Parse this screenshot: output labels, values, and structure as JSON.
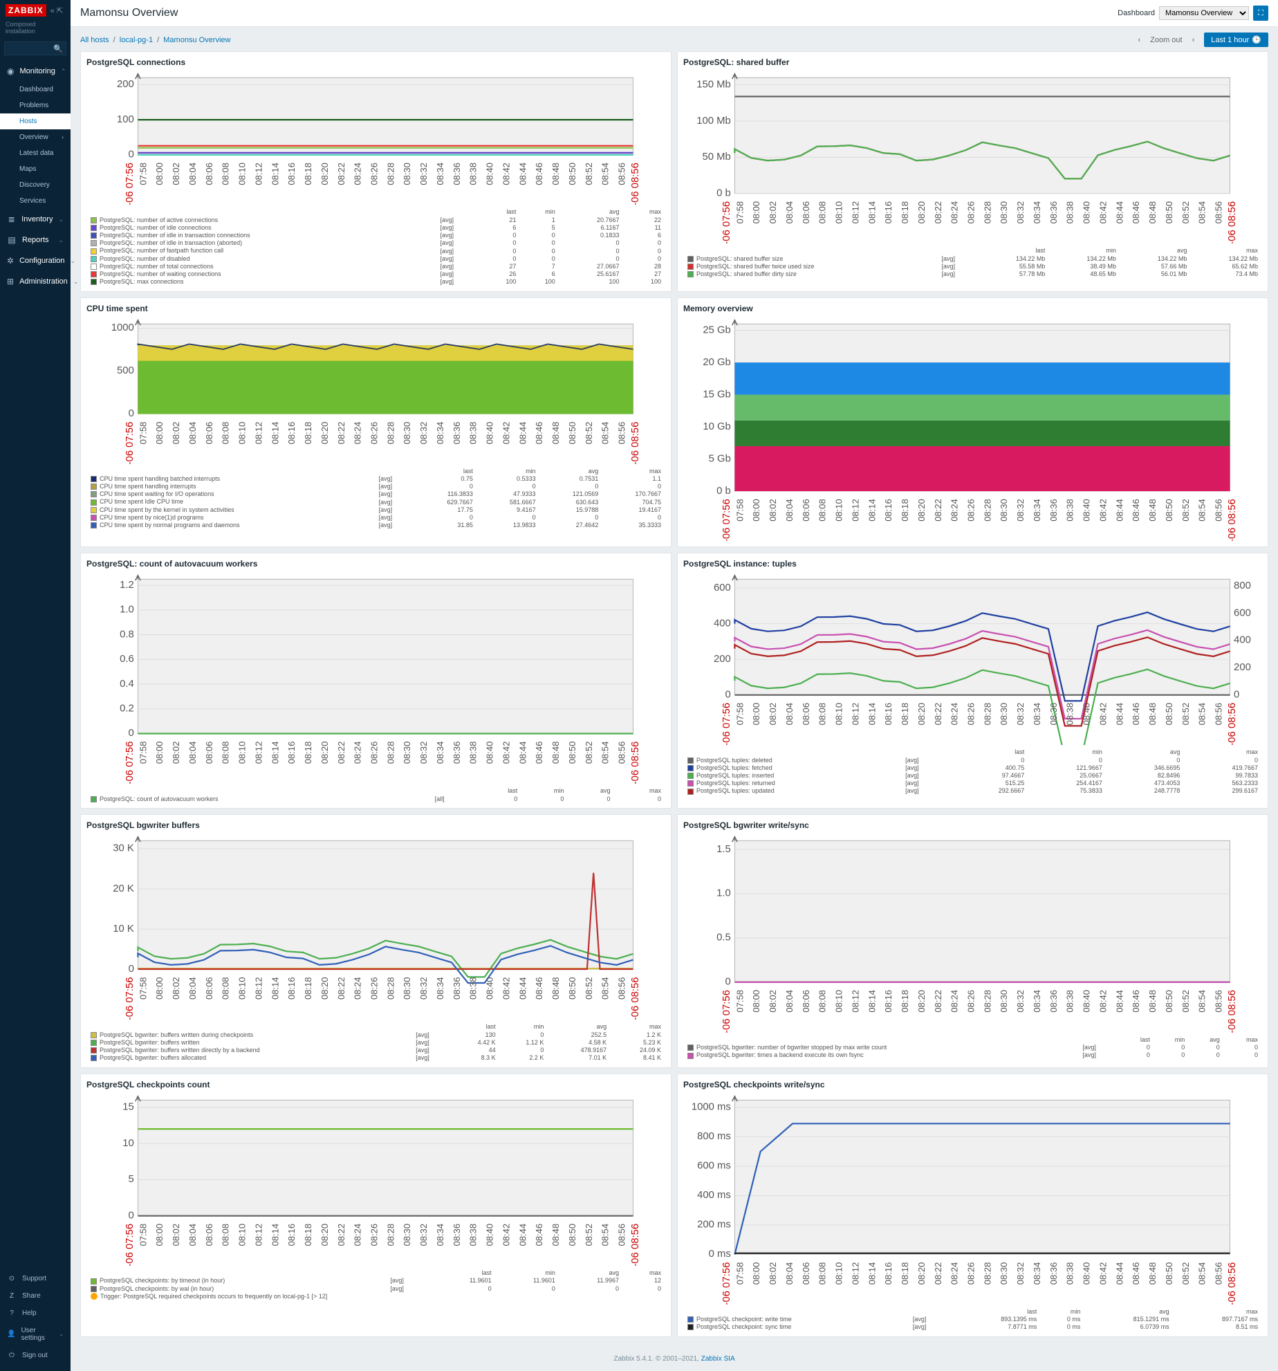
{
  "global": {
    "logo": "ZABBIX",
    "installation_label": "Composed installation",
    "page_title": "Mamonsu Overview",
    "dashboard_label": "Dashboard",
    "dashboard_selected": "Mamonsu Overview",
    "breadcrumb": {
      "all_hosts": "All hosts",
      "host": "local-pg-1",
      "current": "Mamonsu Overview"
    },
    "zoom_out": "Zoom out",
    "time_range": "Last 1 hour",
    "time_axis": {
      "start_label": "08-06 07:56",
      "end_label": "08-06 08:56",
      "ticks": [
        "07:58",
        "08:00",
        "08:02",
        "08:04",
        "08:06",
        "08:08",
        "08:10",
        "08:12",
        "08:14",
        "08:16",
        "08:18",
        "08:20",
        "08:22",
        "08:24",
        "08:26",
        "08:28",
        "08:30",
        "08:32",
        "08:34",
        "08:36",
        "08:38",
        "08:40",
        "08:42",
        "08:44",
        "08:46",
        "08:48",
        "08:50",
        "08:52",
        "08:54",
        "08:56"
      ]
    },
    "footer": {
      "text": "Zabbix 5.4.1. © 2001–2021, ",
      "link": "Zabbix SIA"
    },
    "colors": {
      "grid": "#c8c8c8",
      "plot_bg": "#f0f0f0",
      "red": "#c00000",
      "gridline": "#dcdcdc"
    }
  },
  "nav": {
    "sections": [
      {
        "icon": "◉",
        "label": "Monitoring",
        "expanded": true,
        "items": [
          {
            "label": "Dashboard"
          },
          {
            "label": "Problems"
          },
          {
            "label": "Hosts",
            "active": true
          },
          {
            "label": "Overview",
            "has_chev": true
          },
          {
            "label": "Latest data"
          },
          {
            "label": "Maps"
          },
          {
            "label": "Discovery"
          },
          {
            "label": "Services"
          }
        ]
      },
      {
        "icon": "≣",
        "label": "Inventory"
      },
      {
        "icon": "▤",
        "label": "Reports"
      },
      {
        "icon": "✲",
        "label": "Configuration"
      },
      {
        "icon": "⊞",
        "label": "Administration"
      }
    ],
    "footer": [
      {
        "icon": "⊙",
        "label": "Support"
      },
      {
        "icon": "Z",
        "label": "Share"
      },
      {
        "icon": "?",
        "label": "Help"
      },
      {
        "icon": "👤",
        "label": "User settings",
        "has_chev": true
      },
      {
        "icon": "⏻",
        "label": "Sign out"
      }
    ]
  },
  "panels": {
    "connections": {
      "title": "PostgreSQL connections",
      "yticks": [
        {
          "v": 0,
          "l": "0"
        },
        {
          "v": 100,
          "l": "100"
        },
        {
          "v": 200,
          "l": "200"
        }
      ],
      "ymax": 220,
      "series": [
        {
          "name": "PostgreSQL: number of active connections",
          "color": "#8bc34a",
          "agg": "[avg]",
          "last": "21",
          "min": "1",
          "avg": "20.7667",
          "max": "22",
          "y": 20
        },
        {
          "name": "PostgreSQL: number of idle connections",
          "color": "#6848d0",
          "agg": "[avg]",
          "last": "6",
          "min": "5",
          "avg": "6.1167",
          "max": "11",
          "y": 6
        },
        {
          "name": "PostgreSQL: number of idle in transaction connections",
          "color": "#3f51b5",
          "agg": "[avg]",
          "last": "0",
          "min": "0",
          "avg": "0.1833",
          "max": "6",
          "y": 0
        },
        {
          "name": "PostgreSQL: number of idle in transaction (aborted)",
          "color": "#b0b0b0",
          "agg": "[avg]",
          "last": "0",
          "min": "0",
          "avg": "0",
          "max": "0",
          "y": 0
        },
        {
          "name": "PostgreSQL: number of fastpath function call",
          "color": "#f0d030",
          "agg": "[avg]",
          "last": "0",
          "min": "0",
          "avg": "0",
          "max": "0",
          "y": 0
        },
        {
          "name": "PostgreSQL: number of disabled",
          "color": "#4dd0c0",
          "agg": "[avg]",
          "last": "0",
          "min": "0",
          "avg": "0",
          "max": "0",
          "y": 0
        },
        {
          "name": "PostgreSQL: number of total connections",
          "color": "#ffffff",
          "agg": "[avg]",
          "last": "27",
          "min": "7",
          "avg": "27.0667",
          "max": "28",
          "y": 27
        },
        {
          "name": "PostgreSQL: number of waiting connections",
          "color": "#e53935",
          "agg": "[avg]",
          "last": "26",
          "min": "6",
          "avg": "25.6167",
          "max": "27",
          "y": 26
        },
        {
          "name": "PostgreSQL: max connections",
          "color": "#1b5e20",
          "agg": "[avg]",
          "last": "100",
          "min": "100",
          "avg": "100",
          "max": "100",
          "y": 100
        }
      ]
    },
    "shared_buffer": {
      "title": "PostgreSQL: shared buffer",
      "yticks": [
        {
          "v": 0,
          "l": "0 b"
        },
        {
          "v": 50,
          "l": "50 Mb"
        },
        {
          "v": 100,
          "l": "100 Mb"
        },
        {
          "v": 150,
          "l": "150 Mb"
        }
      ],
      "ymax": 160,
      "series": [
        {
          "name": "PostgreSQL: shared buffer size",
          "color": "#606060",
          "agg": "[avg]",
          "last": "134.22 Mb",
          "min": "134.22 Mb",
          "avg": "134.22 Mb",
          "max": "134.22 Mb",
          "y": 134
        },
        {
          "name": "PostgreSQL: shared buffer twice used size",
          "color": "#d32f2f",
          "agg": "[avg]",
          "last": "55.58 Mb",
          "min": "38.49 Mb",
          "avg": "57.66 Mb",
          "max": "65.62 Mb",
          "y": 56,
          "wavy": true
        },
        {
          "name": "PostgreSQL: shared buffer dirty size",
          "color": "#4caf50",
          "agg": "[avg]",
          "last": "57.78 Mb",
          "min": "48.65 Mb",
          "avg": "56.01 Mb",
          "max": "73.4 Mb",
          "y": 56,
          "wavy": true
        }
      ]
    },
    "cpu": {
      "title": "CPU time spent",
      "yticks": [
        {
          "v": 0,
          "l": "0"
        },
        {
          "v": 500,
          "l": "500"
        },
        {
          "v": 1000,
          "l": "1000"
        }
      ],
      "ymax": 1050,
      "stacked": true,
      "series": [
        {
          "name": "CPU time spent handling batched interrupts",
          "color": "#1b2a75",
          "agg": "[avg]",
          "last": "0.75",
          "min": "0.5333",
          "avg": "0.7531",
          "max": "1.1"
        },
        {
          "name": "CPU time spent handling interrupts",
          "color": "#b0a040",
          "agg": "[avg]",
          "last": "0",
          "min": "0",
          "avg": "0",
          "max": "0"
        },
        {
          "name": "CPU time spent waiting for I/O operations",
          "color": "#80a080",
          "agg": "[avg]",
          "last": "116.3833",
          "min": "47.9333",
          "avg": "121.0569",
          "max": "170.7667"
        },
        {
          "name": "CPU time spent Idle CPU time",
          "color": "#6dbb30",
          "agg": "[avg]",
          "last": "629.7667",
          "min": "581.6667",
          "avg": "630.643",
          "max": "704.75"
        },
        {
          "name": "CPU time spent by the kernel in system activities",
          "color": "#e0d040",
          "agg": "[avg]",
          "last": "17.75",
          "min": "9.4167",
          "avg": "15.9788",
          "max": "19.4167"
        },
        {
          "name": "CPU time spent by nice(1)d programs",
          "color": "#c850b0",
          "agg": "[avg]",
          "last": "0",
          "min": "0",
          "avg": "0",
          "max": "0"
        },
        {
          "name": "CPU time spent by normal programs and daemons",
          "color": "#3060b8",
          "agg": "[avg]",
          "last": "31.85",
          "min": "13.9833",
          "avg": "27.4642",
          "max": "35.3333"
        }
      ]
    },
    "memory": {
      "title": "Memory overview",
      "yticks": [
        {
          "v": 0,
          "l": "0 b"
        },
        {
          "v": 5,
          "l": "5 Gb"
        },
        {
          "v": 10,
          "l": "10 Gb"
        },
        {
          "v": 15,
          "l": "15 Gb"
        },
        {
          "v": 20,
          "l": "20 Gb"
        },
        {
          "v": 25,
          "l": "25 Gb"
        }
      ],
      "ymax": 26,
      "stacked": true,
      "bands": [
        {
          "color": "#d81b60",
          "h": 7
        },
        {
          "color": "#2e7d32",
          "h": 4
        },
        {
          "color": "#66bb6a",
          "h": 4
        },
        {
          "color": "#1e88e5",
          "h": 5
        }
      ]
    },
    "autovacuum": {
      "title": "PostgreSQL: count of autovacuum workers",
      "yticks": [
        {
          "v": 0,
          "l": "0"
        },
        {
          "v": 0.2,
          "l": "0.2"
        },
        {
          "v": 0.4,
          "l": "0.4"
        },
        {
          "v": 0.6,
          "l": "0.6"
        },
        {
          "v": 0.8,
          "l": "0.8"
        },
        {
          "v": 1.0,
          "l": "1.0"
        },
        {
          "v": 1.2,
          "l": "1.2"
        }
      ],
      "ymax": 1.25,
      "series": [
        {
          "name": "PostgreSQL: count of autovacuum workers",
          "color": "#4caf50",
          "agg": "[all]",
          "last": "0",
          "min": "0",
          "avg": "0",
          "max": "0",
          "y": 0
        }
      ]
    },
    "tuples": {
      "title": "PostgreSQL instance: tuples",
      "yticks_l": [
        {
          "v": 0,
          "l": "0"
        },
        {
          "v": 200,
          "l": "200"
        },
        {
          "v": 400,
          "l": "400"
        },
        {
          "v": 600,
          "l": "600"
        }
      ],
      "yticks_r": [
        {
          "v": 0,
          "l": "0"
        },
        {
          "v": 200,
          "l": "200"
        },
        {
          "v": 400,
          "l": "400"
        },
        {
          "v": 600,
          "l": "600"
        },
        {
          "v": 800,
          "l": "800"
        }
      ],
      "ymax": 650,
      "series": [
        {
          "name": "PostgreSQL tuples: deleted",
          "color": "#606060",
          "agg": "[avg]",
          "last": "0",
          "min": "0",
          "avg": "0",
          "max": "0",
          "y": 0
        },
        {
          "name": "PostgreSQL tuples: fetched",
          "color": "#2040a0",
          "agg": "[avg]",
          "last": "400.75",
          "min": "121.9667",
          "avg": "346.6695",
          "max": "419.7667",
          "y": 400,
          "wavy": true
        },
        {
          "name": "PostgreSQL tuples: inserted",
          "color": "#4caf50",
          "agg": "[avg]",
          "last": "97.4667",
          "min": "25.0667",
          "avg": "82.8496",
          "max": "99.7833",
          "y": 80,
          "wavy": true
        },
        {
          "name": "PostgreSQL tuples: returned",
          "color": "#c850b0",
          "agg": "[avg]",
          "last": "515.25",
          "min": "254.4167",
          "avg": "473.4053",
          "max": "563.2333",
          "y": 300,
          "wavy": true
        },
        {
          "name": "PostgreSQL tuples: updated",
          "color": "#b02020",
          "agg": "[avg]",
          "last": "292.6667",
          "min": "75.3833",
          "avg": "248.7778",
          "max": "299.6167",
          "y": 260,
          "wavy": true
        }
      ]
    },
    "bgwriter_buffers": {
      "title": "PostgreSQL bgwriter buffers",
      "yticks": [
        {
          "v": 0,
          "l": "0"
        },
        {
          "v": 10000,
          "l": "10 K"
        },
        {
          "v": 20000,
          "l": "20 K"
        },
        {
          "v": 30000,
          "l": "30 K"
        }
      ],
      "ymax": 32000,
      "series": [
        {
          "name": "PostgreSQL bgwriter: buffers written during checkpoints",
          "color": "#d0c040",
          "agg": "[avg]",
          "last": "130",
          "min": "0",
          "avg": "252.5",
          "max": "1.2 K",
          "y": 200
        },
        {
          "name": "PostgreSQL bgwriter: buffers written",
          "color": "#4caf50",
          "agg": "[avg]",
          "last": "4.42 K",
          "min": "1.12 K",
          "avg": "4.58 K",
          "max": "5.23 K",
          "y": 4500,
          "wavy": true
        },
        {
          "name": "PostgreSQL bgwriter: buffers written directly by a backend",
          "color": "#c03030",
          "agg": "[avg]",
          "last": "44",
          "min": "0",
          "avg": "478.9167",
          "max": "24.09 K",
          "y": 50,
          "spike": true
        },
        {
          "name": "PostgreSQL bgwriter: buffers allocated",
          "color": "#3060b8",
          "agg": "[avg]",
          "last": "8.3 K",
          "min": "2.2 K",
          "avg": "7.01 K",
          "max": "8.41 K",
          "y": 3000,
          "wavy": true
        }
      ]
    },
    "bgwriter_sync": {
      "title": "PostgreSQL bgwriter write/sync",
      "yticks": [
        {
          "v": 0,
          "l": "0"
        },
        {
          "v": 0.5,
          "l": "0.5"
        },
        {
          "v": 1.0,
          "l": "1.0"
        },
        {
          "v": 1.5,
          "l": "1.5"
        }
      ],
      "ymax": 1.6,
      "series": [
        {
          "name": "PostgreSQL bgwriter: number of bgwriter stopped by max write count",
          "color": "#606060",
          "agg": "[avg]",
          "last": "0",
          "min": "0",
          "avg": "0",
          "max": "0",
          "y": 0
        },
        {
          "name": "PostgreSQL bgwriter: times a backend execute its own fsync",
          "color": "#c850b0",
          "agg": "[avg]",
          "last": "0",
          "min": "0",
          "avg": "0",
          "max": "0",
          "y": 0
        }
      ]
    },
    "checkpoints_count": {
      "title": "PostgreSQL checkpoints count",
      "yticks": [
        {
          "v": 0,
          "l": "0"
        },
        {
          "v": 5,
          "l": "5"
        },
        {
          "v": 10,
          "l": "10"
        },
        {
          "v": 15,
          "l": "15"
        }
      ],
      "ymax": 16,
      "series": [
        {
          "name": "PostgreSQL checkpoints: by timeout (in hour)",
          "color": "#6dbb30",
          "agg": "[avg]",
          "last": "11.9601",
          "min": "11.9601",
          "avg": "11.9967",
          "max": "12",
          "y": 12
        },
        {
          "name": "PostgreSQL checkpoints: by wal (in hour)",
          "color": "#606060",
          "agg": "[avg]",
          "last": "0",
          "min": "0",
          "avg": "0",
          "max": "0",
          "y": 0
        }
      ],
      "trigger": "Trigger: PostgreSQL required checkpoints occurs to frequently on local-pg-1    [> 12]"
    },
    "checkpoints_sync": {
      "title": "PostgreSQL checkpoints write/sync",
      "yticks": [
        {
          "v": 0,
          "l": "0 ms"
        },
        {
          "v": 200,
          "l": "200 ms"
        },
        {
          "v": 400,
          "l": "400 ms"
        },
        {
          "v": 600,
          "l": "600 ms"
        },
        {
          "v": 800,
          "l": "800 ms"
        },
        {
          "v": 1000,
          "l": "1000 ms"
        }
      ],
      "ymax": 1050,
      "series": [
        {
          "name": "PostgreSQL checkpoint: write time",
          "color": "#3060b8",
          "agg": "[avg]",
          "last": "893.1395 ms",
          "min": "0 ms",
          "avg": "815.1291 ms",
          "max": "897.7167 ms",
          "ramp": true
        },
        {
          "name": "PostgreSQL checkpoint: sync time",
          "color": "#202020",
          "agg": "[avg]",
          "last": "7.8771 ms",
          "min": "0 ms",
          "avg": "6.0739 ms",
          "max": "8.51 ms",
          "y": 8
        }
      ]
    }
  }
}
